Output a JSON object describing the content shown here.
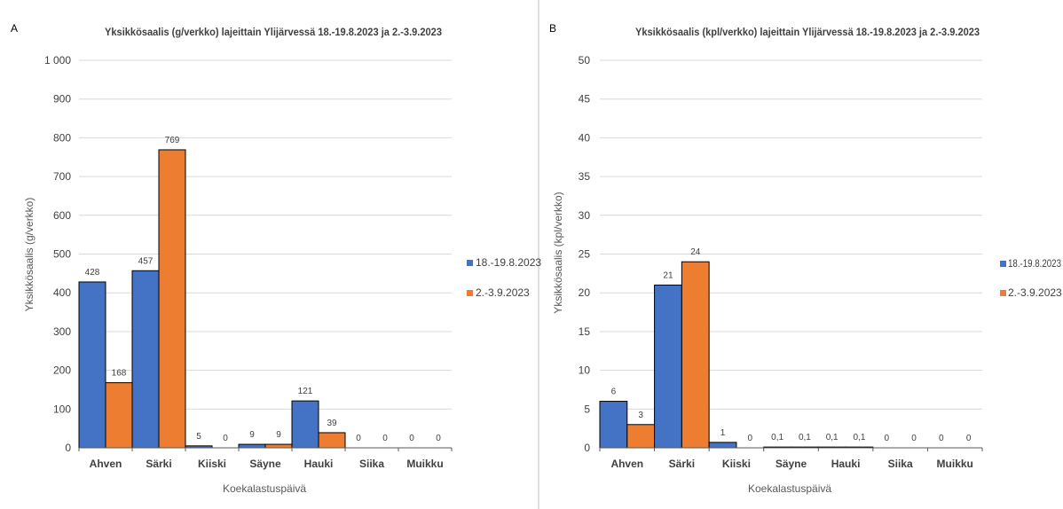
{
  "colors": {
    "series1": "#4472C4",
    "series2": "#ED7D31",
    "grid": "#D9D9D9",
    "axis": "#595959",
    "text": "#404040",
    "panel_border": "#BFBFBF"
  },
  "chart_data": [
    {
      "panel_letter": "A",
      "type": "bar",
      "title": "Yksikkösaalis (g/verkko) lajeittain Ylijärvessä 18.-19.8.2023 ja 2.-3.9.2023",
      "xlabel": "Koekalastuspäivä",
      "ylabel": "Yksikkösaalis (g/verkko)",
      "ylim": [
        0,
        1000
      ],
      "yticks": [
        0,
        100,
        200,
        300,
        400,
        500,
        600,
        700,
        800,
        900,
        1000
      ],
      "ytick_labels": [
        "0",
        "100",
        "200",
        "300",
        "400",
        "500",
        "600",
        "700",
        "800",
        "900",
        "1 000"
      ],
      "grid": true,
      "legend_position": "right",
      "categories": [
        "Ahven",
        "Särki",
        "Kiiski",
        "Säyne",
        "Hauki",
        "Siika",
        "Muikku"
      ],
      "series": [
        {
          "name": "18.-19.8.2023",
          "values": [
            428,
            457,
            5,
            9,
            121,
            0,
            0
          ],
          "labels": [
            "428",
            "457",
            "5",
            "9",
            "121",
            "0",
            "0"
          ]
        },
        {
          "name": "2.-3.9.2023",
          "values": [
            168,
            769,
            0,
            9,
            39,
            0,
            0
          ],
          "labels": [
            "168",
            "769",
            "0",
            "9",
            "39",
            "0",
            "0"
          ]
        }
      ]
    },
    {
      "panel_letter": "B",
      "type": "bar",
      "title": "Yksikkösaalis (kpl/verkko) lajeittain Ylijärvessä 18.-19.8.2023 ja 2.-3.9.2023",
      "xlabel": "Koekalastuspäivä",
      "ylabel": "Yksikkösaalis (kpl/verkko)",
      "ylim": [
        0,
        50
      ],
      "yticks": [
        0,
        5,
        10,
        15,
        20,
        25,
        30,
        35,
        40,
        45,
        50
      ],
      "ytick_labels": [
        "0",
        "5",
        "10",
        "15",
        "20",
        "25",
        "30",
        "35",
        "40",
        "45",
        "50"
      ],
      "grid": true,
      "legend_position": "right",
      "categories": [
        "Ahven",
        "Särki",
        "Kiiski",
        "Säyne",
        "Hauki",
        "Siika",
        "Muikku"
      ],
      "series": [
        {
          "name": "18.-19.8.2023",
          "values": [
            6,
            21,
            0.7,
            0.1,
            0.1,
            0,
            0
          ],
          "labels": [
            "6",
            "21",
            "1",
            "0,1",
            "0,1",
            "0",
            "0"
          ]
        },
        {
          "name": "2.-3.9.2023",
          "values": [
            3,
            24,
            0,
            0.1,
            0.1,
            0,
            0
          ],
          "labels": [
            "3",
            "24",
            "0",
            "0,1",
            "0,1",
            "0",
            "0"
          ]
        }
      ]
    }
  ]
}
